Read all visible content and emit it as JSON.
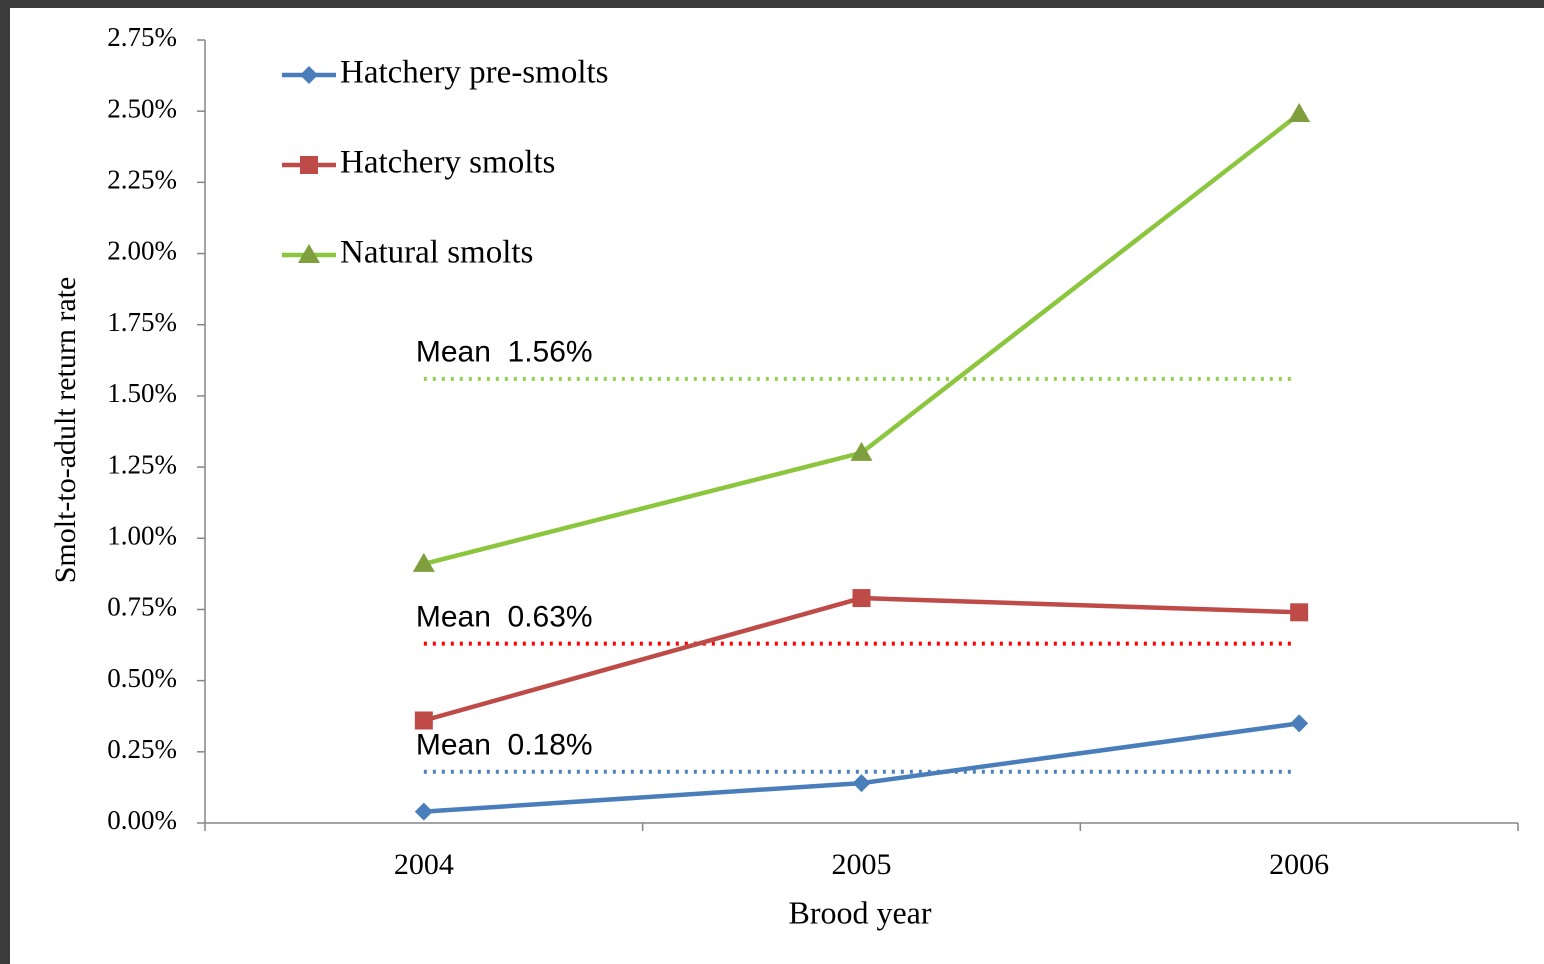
{
  "chart_data": {
    "type": "line",
    "x_label": "Brood year",
    "y_label": "Smolt-to-adult  return rate",
    "categories": [
      "2004",
      "2005",
      "2006"
    ],
    "series": [
      {
        "name": "Hatchery pre-smolts",
        "color": "#4a7ebb",
        "marker": "diamond",
        "values": [
          0.04,
          0.14,
          0.35
        ]
      },
      {
        "name": "Hatchery smolts",
        "color": "#be4b48",
        "marker": "square",
        "values": [
          0.36,
          0.79,
          0.74
        ]
      },
      {
        "name": "Natural smolts",
        "color": "#8cc63f",
        "marker": "triangle",
        "values": [
          0.91,
          1.3,
          2.49
        ]
      }
    ],
    "mean_lines": [
      {
        "label": "Mean  1.56%",
        "value": 1.56,
        "color": "#92d050"
      },
      {
        "label": "Mean  0.63%",
        "value": 0.63,
        "color": "#ff0000"
      },
      {
        "label": "Mean  0.18%",
        "value": 0.18,
        "color": "#4f81bd"
      }
    ],
    "ylim": [
      0,
      2.75
    ],
    "yticks": [
      {
        "value": 0,
        "label": "0.00%"
      },
      {
        "value": 0.25,
        "label": "0.25%"
      },
      {
        "value": 0.5,
        "label": "0.50%"
      },
      {
        "value": 0.75,
        "label": "0.75%"
      },
      {
        "value": 1,
        "label": "1.00%"
      },
      {
        "value": 1.25,
        "label": "1.25%"
      },
      {
        "value": 1.5,
        "label": "1.50%"
      },
      {
        "value": 1.75,
        "label": "1.75%"
      },
      {
        "value": 2,
        "label": "2.00%"
      },
      {
        "value": 2.25,
        "label": "2.25%"
      },
      {
        "value": 2.5,
        "label": "2.50%"
      },
      {
        "value": 2.75,
        "label": "2.75%"
      }
    ],
    "grid": false,
    "legend": "top-left"
  }
}
